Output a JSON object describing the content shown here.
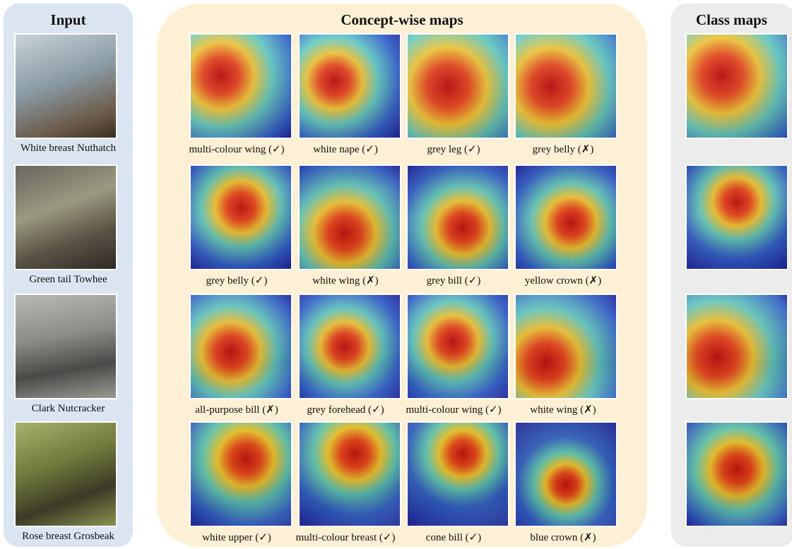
{
  "input": {
    "title": "Input",
    "items": [
      "White breast Nuthatch",
      "Green tail Towhee",
      "Clark Nutcracker",
      "Rose breast Grosbeak"
    ]
  },
  "concepts": {
    "title": "Concept-wise maps",
    "rows": [
      [
        "multi-colour wing (✓)",
        "white nape (✓)",
        "grey leg (✓)",
        "grey belly (✗)"
      ],
      [
        "grey belly (✓)",
        "white wing (✗)",
        "grey bill (✓)",
        "yellow crown (✗)"
      ],
      [
        "all-purpose bill (✗)",
        "grey forehead (✓)",
        "multi-colour wing (✓)",
        "white wing (✗)"
      ],
      [
        "white upper (✓)",
        "multi-colour breast (✓)",
        "cone bill (✓)",
        "blue crown (✗)"
      ]
    ]
  },
  "class_maps": {
    "title": "Class maps"
  }
}
